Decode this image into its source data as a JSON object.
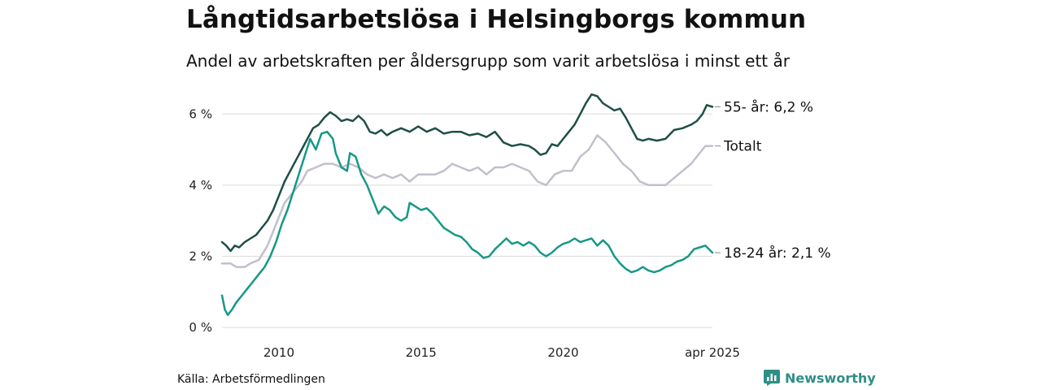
{
  "title": "Långtidsarbetslösa i Helsingborgs kommun",
  "subtitle": "Andel av arbetskraften per åldersgrupp som varit arbetslösa i minst ett år",
  "source": "Källa: Arbetsförmedlingen",
  "brand": {
    "name": "Newsworthy",
    "icon": "newsworthy-logo-icon",
    "color": "#2e8f86"
  },
  "chart_data": {
    "type": "line",
    "x_range": [
      2008.0,
      2025.25
    ],
    "ylim": [
      0,
      6.6
    ],
    "y_ticks": [
      0,
      2,
      4,
      6
    ],
    "y_tick_labels": [
      "0 %",
      "2 %",
      "4 %",
      "6 %"
    ],
    "x_ticks": [
      2010,
      2015,
      2020,
      2025.25
    ],
    "x_tick_labels": [
      "2010",
      "2015",
      "2020",
      "apr 2025"
    ],
    "grid": "horizontal",
    "legend": "end-of-line labels",
    "series": [
      {
        "key": "totalt",
        "end_label": "Totalt",
        "color": "#c3bfcc",
        "points": [
          [
            2008.0,
            1.8
          ],
          [
            2008.3,
            1.8
          ],
          [
            2008.5,
            1.7
          ],
          [
            2008.8,
            1.7
          ],
          [
            2009.0,
            1.8
          ],
          [
            2009.3,
            1.9
          ],
          [
            2009.6,
            2.3
          ],
          [
            2009.9,
            2.9
          ],
          [
            2010.2,
            3.5
          ],
          [
            2010.5,
            3.8
          ],
          [
            2010.8,
            4.1
          ],
          [
            2011.0,
            4.4
          ],
          [
            2011.3,
            4.5
          ],
          [
            2011.6,
            4.6
          ],
          [
            2011.9,
            4.6
          ],
          [
            2012.2,
            4.5
          ],
          [
            2012.5,
            4.6
          ],
          [
            2012.8,
            4.5
          ],
          [
            2013.1,
            4.3
          ],
          [
            2013.4,
            4.2
          ],
          [
            2013.7,
            4.3
          ],
          [
            2014.0,
            4.2
          ],
          [
            2014.3,
            4.3
          ],
          [
            2014.6,
            4.1
          ],
          [
            2014.9,
            4.3
          ],
          [
            2015.2,
            4.3
          ],
          [
            2015.5,
            4.3
          ],
          [
            2015.8,
            4.4
          ],
          [
            2016.1,
            4.6
          ],
          [
            2016.4,
            4.5
          ],
          [
            2016.7,
            4.4
          ],
          [
            2017.0,
            4.5
          ],
          [
            2017.3,
            4.3
          ],
          [
            2017.6,
            4.5
          ],
          [
            2017.9,
            4.5
          ],
          [
            2018.2,
            4.6
          ],
          [
            2018.5,
            4.5
          ],
          [
            2018.8,
            4.4
          ],
          [
            2019.1,
            4.1
          ],
          [
            2019.4,
            4.0
          ],
          [
            2019.7,
            4.3
          ],
          [
            2020.0,
            4.4
          ],
          [
            2020.3,
            4.4
          ],
          [
            2020.6,
            4.8
          ],
          [
            2020.9,
            5.0
          ],
          [
            2021.2,
            5.4
          ],
          [
            2021.5,
            5.2
          ],
          [
            2021.8,
            4.9
          ],
          [
            2022.1,
            4.6
          ],
          [
            2022.4,
            4.4
          ],
          [
            2022.7,
            4.1
          ],
          [
            2023.0,
            4.0
          ],
          [
            2023.3,
            4.0
          ],
          [
            2023.6,
            4.0
          ],
          [
            2023.9,
            4.2
          ],
          [
            2024.2,
            4.4
          ],
          [
            2024.5,
            4.6
          ],
          [
            2024.8,
            4.9
          ],
          [
            2025.0,
            5.1
          ],
          [
            2025.25,
            5.1
          ]
        ]
      },
      {
        "key": "55",
        "end_label": "55- år: 6,2 %",
        "color": "#1f4f46",
        "points": [
          [
            2008.0,
            2.4
          ],
          [
            2008.15,
            2.3
          ],
          [
            2008.3,
            2.15
          ],
          [
            2008.45,
            2.3
          ],
          [
            2008.6,
            2.25
          ],
          [
            2008.8,
            2.4
          ],
          [
            2009.0,
            2.5
          ],
          [
            2009.2,
            2.6
          ],
          [
            2009.4,
            2.8
          ],
          [
            2009.6,
            3.0
          ],
          [
            2009.8,
            3.3
          ],
          [
            2010.0,
            3.7
          ],
          [
            2010.2,
            4.1
          ],
          [
            2010.4,
            4.4
          ],
          [
            2010.6,
            4.7
          ],
          [
            2010.8,
            5.0
          ],
          [
            2011.0,
            5.3
          ],
          [
            2011.2,
            5.6
          ],
          [
            2011.4,
            5.7
          ],
          [
            2011.6,
            5.9
          ],
          [
            2011.8,
            6.05
          ],
          [
            2012.0,
            5.95
          ],
          [
            2012.2,
            5.8
          ],
          [
            2012.4,
            5.85
          ],
          [
            2012.6,
            5.8
          ],
          [
            2012.8,
            5.95
          ],
          [
            2013.0,
            5.8
          ],
          [
            2013.2,
            5.5
          ],
          [
            2013.4,
            5.45
          ],
          [
            2013.6,
            5.55
          ],
          [
            2013.8,
            5.4
          ],
          [
            2014.0,
            5.5
          ],
          [
            2014.3,
            5.6
          ],
          [
            2014.6,
            5.5
          ],
          [
            2014.9,
            5.65
          ],
          [
            2015.2,
            5.5
          ],
          [
            2015.5,
            5.6
          ],
          [
            2015.8,
            5.45
          ],
          [
            2016.1,
            5.5
          ],
          [
            2016.4,
            5.5
          ],
          [
            2016.7,
            5.4
          ],
          [
            2017.0,
            5.45
          ],
          [
            2017.3,
            5.35
          ],
          [
            2017.6,
            5.5
          ],
          [
            2017.9,
            5.2
          ],
          [
            2018.2,
            5.1
          ],
          [
            2018.5,
            5.15
          ],
          [
            2018.8,
            5.1
          ],
          [
            2019.0,
            5.0
          ],
          [
            2019.2,
            4.85
          ],
          [
            2019.4,
            4.9
          ],
          [
            2019.6,
            5.15
          ],
          [
            2019.8,
            5.1
          ],
          [
            2020.0,
            5.3
          ],
          [
            2020.2,
            5.5
          ],
          [
            2020.4,
            5.7
          ],
          [
            2020.6,
            6.0
          ],
          [
            2020.8,
            6.3
          ],
          [
            2021.0,
            6.55
          ],
          [
            2021.2,
            6.5
          ],
          [
            2021.4,
            6.3
          ],
          [
            2021.6,
            6.2
          ],
          [
            2021.8,
            6.1
          ],
          [
            2022.0,
            6.15
          ],
          [
            2022.2,
            5.9
          ],
          [
            2022.4,
            5.6
          ],
          [
            2022.6,
            5.3
          ],
          [
            2022.8,
            5.25
          ],
          [
            2023.0,
            5.3
          ],
          [
            2023.3,
            5.25
          ],
          [
            2023.6,
            5.3
          ],
          [
            2023.9,
            5.55
          ],
          [
            2024.2,
            5.6
          ],
          [
            2024.5,
            5.7
          ],
          [
            2024.7,
            5.8
          ],
          [
            2024.9,
            6.0
          ],
          [
            2025.05,
            6.25
          ],
          [
            2025.25,
            6.2
          ]
        ]
      },
      {
        "key": "18-24",
        "end_label": "18-24 år: 2,1 %",
        "color": "#169887",
        "points": [
          [
            2008.0,
            0.9
          ],
          [
            2008.1,
            0.5
          ],
          [
            2008.2,
            0.35
          ],
          [
            2008.35,
            0.5
          ],
          [
            2008.5,
            0.7
          ],
          [
            2008.7,
            0.9
          ],
          [
            2008.9,
            1.1
          ],
          [
            2009.1,
            1.3
          ],
          [
            2009.3,
            1.5
          ],
          [
            2009.5,
            1.7
          ],
          [
            2009.7,
            2.0
          ],
          [
            2009.9,
            2.4
          ],
          [
            2010.1,
            2.9
          ],
          [
            2010.3,
            3.3
          ],
          [
            2010.5,
            3.8
          ],
          [
            2010.7,
            4.3
          ],
          [
            2010.9,
            4.8
          ],
          [
            2011.1,
            5.3
          ],
          [
            2011.3,
            5.0
          ],
          [
            2011.5,
            5.45
          ],
          [
            2011.7,
            5.5
          ],
          [
            2011.9,
            5.3
          ],
          [
            2012.0,
            4.9
          ],
          [
            2012.2,
            4.5
          ],
          [
            2012.4,
            4.4
          ],
          [
            2012.5,
            4.9
          ],
          [
            2012.7,
            4.8
          ],
          [
            2012.9,
            4.3
          ],
          [
            2013.1,
            4.0
          ],
          [
            2013.3,
            3.6
          ],
          [
            2013.5,
            3.2
          ],
          [
            2013.7,
            3.4
          ],
          [
            2013.9,
            3.3
          ],
          [
            2014.1,
            3.1
          ],
          [
            2014.3,
            3.0
          ],
          [
            2014.5,
            3.1
          ],
          [
            2014.6,
            3.5
          ],
          [
            2014.8,
            3.4
          ],
          [
            2015.0,
            3.3
          ],
          [
            2015.2,
            3.35
          ],
          [
            2015.4,
            3.2
          ],
          [
            2015.6,
            3.0
          ],
          [
            2015.8,
            2.8
          ],
          [
            2016.0,
            2.7
          ],
          [
            2016.2,
            2.6
          ],
          [
            2016.4,
            2.55
          ],
          [
            2016.6,
            2.4
          ],
          [
            2016.8,
            2.2
          ],
          [
            2017.0,
            2.1
          ],
          [
            2017.2,
            1.95
          ],
          [
            2017.4,
            2.0
          ],
          [
            2017.6,
            2.2
          ],
          [
            2017.8,
            2.35
          ],
          [
            2018.0,
            2.5
          ],
          [
            2018.2,
            2.35
          ],
          [
            2018.4,
            2.4
          ],
          [
            2018.6,
            2.3
          ],
          [
            2018.8,
            2.4
          ],
          [
            2019.0,
            2.3
          ],
          [
            2019.2,
            2.1
          ],
          [
            2019.4,
            2.0
          ],
          [
            2019.6,
            2.1
          ],
          [
            2019.8,
            2.25
          ],
          [
            2020.0,
            2.35
          ],
          [
            2020.2,
            2.4
          ],
          [
            2020.4,
            2.5
          ],
          [
            2020.6,
            2.4
          ],
          [
            2020.8,
            2.45
          ],
          [
            2021.0,
            2.5
          ],
          [
            2021.2,
            2.3
          ],
          [
            2021.4,
            2.45
          ],
          [
            2021.6,
            2.3
          ],
          [
            2021.8,
            2.0
          ],
          [
            2022.0,
            1.8
          ],
          [
            2022.2,
            1.65
          ],
          [
            2022.4,
            1.55
          ],
          [
            2022.6,
            1.6
          ],
          [
            2022.8,
            1.7
          ],
          [
            2023.0,
            1.6
          ],
          [
            2023.2,
            1.55
          ],
          [
            2023.4,
            1.6
          ],
          [
            2023.6,
            1.7
          ],
          [
            2023.8,
            1.75
          ],
          [
            2024.0,
            1.85
          ],
          [
            2024.2,
            1.9
          ],
          [
            2024.4,
            2.0
          ],
          [
            2024.6,
            2.2
          ],
          [
            2024.8,
            2.25
          ],
          [
            2025.0,
            2.3
          ],
          [
            2025.25,
            2.1
          ]
        ]
      }
    ]
  }
}
